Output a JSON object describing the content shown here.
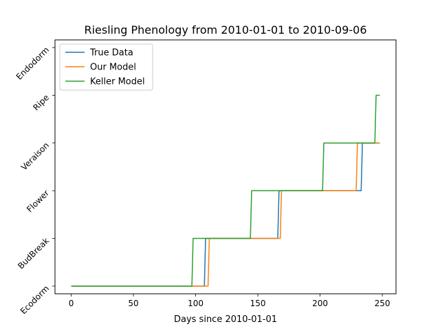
{
  "chart_data": {
    "type": "line",
    "title": "Riesling Phenology from 2010-01-01 to 2010-09-06",
    "xlabel": "Days since 2010-01-01",
    "ylabel": "",
    "xlim": [
      -13,
      261
    ],
    "ylim": [
      -0.16,
      5.16
    ],
    "x_ticks": [
      0,
      50,
      100,
      150,
      200,
      250
    ],
    "y_categories": [
      "Ecodorm",
      "BudBreak",
      "Flower",
      "Veraison",
      "Ripe",
      "Endodorm"
    ],
    "grid": false,
    "legend_position": "top-left",
    "series": [
      {
        "name": "True Data",
        "color": "#1f77b4",
        "points": [
          [
            0,
            0
          ],
          [
            107,
            0
          ],
          [
            108,
            1
          ],
          [
            166,
            1
          ],
          [
            167,
            2
          ],
          [
            233,
            2
          ],
          [
            234,
            3
          ],
          [
            248,
            3
          ]
        ]
      },
      {
        "name": "Our Model",
        "color": "#ff7f0e",
        "points": [
          [
            0,
            0
          ],
          [
            110,
            0
          ],
          [
            111,
            1
          ],
          [
            168,
            1
          ],
          [
            169,
            2
          ],
          [
            229,
            2
          ],
          [
            230,
            3
          ],
          [
            248,
            3
          ]
        ]
      },
      {
        "name": "Keller Model",
        "color": "#2ca02c",
        "points": [
          [
            0,
            0
          ],
          [
            97,
            0
          ],
          [
            98,
            1
          ],
          [
            144,
            1
          ],
          [
            145,
            2
          ],
          [
            202,
            2
          ],
          [
            203,
            3
          ],
          [
            244,
            3
          ],
          [
            245,
            4
          ],
          [
            248,
            4
          ]
        ]
      }
    ]
  }
}
